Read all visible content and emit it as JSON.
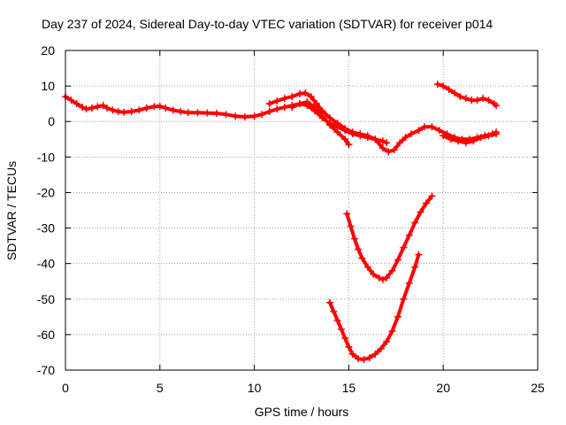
{
  "chart_data": {
    "type": "scatter",
    "title": "Day 237 of 2024, Sidereal Day-to-day VTEC variation (SDTVAR) for receiver p014",
    "xlabel": "GPS time / hours",
    "ylabel": "SDTVAR / TECUs",
    "xlim": [
      0,
      25
    ],
    "ylim": [
      -70,
      20
    ],
    "xticks": [
      0,
      5,
      10,
      15,
      20,
      25
    ],
    "yticks": [
      -70,
      -60,
      -50,
      -40,
      -30,
      -20,
      -10,
      0,
      10,
      20
    ],
    "grid": true,
    "marker": "plus",
    "color": "#ff0000",
    "series": [
      {
        "name": "segment-1",
        "x": [
          0.0,
          0.3,
          0.6,
          0.9,
          1.1,
          1.4,
          1.7,
          2.0,
          2.2,
          2.5,
          2.8,
          3.1,
          3.5,
          3.9,
          4.3,
          4.7,
          5.0,
          5.3,
          5.7,
          6.1,
          6.5,
          7.0,
          7.5,
          8.0,
          8.5,
          9.0,
          9.5,
          10.0,
          10.4,
          10.8,
          11.2,
          11.6,
          12.0,
          12.4,
          12.8,
          13.2,
          13.6,
          14.0,
          14.4,
          14.8,
          15.2,
          15.6,
          16.0,
          16.4,
          16.8,
          17.0
        ],
        "y": [
          7.0,
          6.0,
          5.0,
          4.0,
          3.5,
          3.8,
          4.2,
          4.5,
          3.8,
          3.2,
          2.8,
          2.6,
          2.8,
          3.2,
          3.8,
          4.2,
          4.3,
          3.8,
          3.2,
          2.8,
          2.5,
          2.5,
          2.4,
          2.3,
          2.0,
          1.5,
          1.3,
          1.5,
          2.0,
          2.8,
          3.5,
          4.0,
          4.5,
          5.0,
          4.5,
          3.0,
          1.0,
          -0.5,
          -1.5,
          -2.5,
          -3.5,
          -4.0,
          -4.5,
          -5.0,
          -5.5,
          -6.0
        ]
      },
      {
        "name": "segment-2",
        "x": [
          10.8,
          11.2,
          11.6,
          12.0,
          12.4,
          12.7,
          13.0,
          13.3,
          13.6,
          14.0,
          14.4,
          14.8,
          15.2,
          15.6,
          16.0,
          16.4,
          16.8,
          17.1,
          17.4,
          17.7,
          18.0,
          18.3,
          18.7,
          19.0,
          19.4,
          19.8,
          20.2,
          20.6,
          21.0,
          21.4,
          21.8,
          22.2,
          22.6,
          22.8
        ],
        "y": [
          5.0,
          5.8,
          6.5,
          7.0,
          7.8,
          8.0,
          7.0,
          5.0,
          3.0,
          1.0,
          -0.5,
          -2.0,
          -3.0,
          -3.5,
          -4.0,
          -5.0,
          -7.5,
          -8.5,
          -8.0,
          -6.0,
          -4.5,
          -3.5,
          -2.5,
          -1.5,
          -1.5,
          -2.5,
          -3.5,
          -4.5,
          -5.0,
          -5.0,
          -4.5,
          -4.0,
          -3.5,
          -3.0
        ]
      },
      {
        "name": "segment-3",
        "x": [
          12.0,
          12.4,
          12.8,
          13.2,
          13.6,
          14.0,
          14.4,
          14.8,
          15.0
        ],
        "y": [
          4.0,
          5.0,
          5.5,
          4.0,
          1.5,
          -1.0,
          -3.0,
          -5.0,
          -6.5
        ]
      },
      {
        "name": "segment-4",
        "x": [
          20.0,
          20.4,
          20.8,
          21.2,
          21.6,
          22.0,
          22.4,
          22.8
        ],
        "y": [
          -4.0,
          -5.0,
          -5.5,
          -6.0,
          -5.5,
          -4.5,
          -4.0,
          -3.5
        ]
      },
      {
        "name": "segment-5",
        "x": [
          19.7,
          20.0,
          20.3,
          20.6,
          20.9,
          21.2,
          21.5,
          21.8,
          22.1,
          22.4,
          22.7,
          22.8
        ],
        "y": [
          10.5,
          10.0,
          9.0,
          8.0,
          7.0,
          6.5,
          6.0,
          6.0,
          6.5,
          6.0,
          5.0,
          4.5
        ]
      },
      {
        "name": "segment-6",
        "x": [
          14.9,
          15.1,
          15.3,
          15.5,
          15.7,
          16.0,
          16.3,
          16.6,
          16.8,
          17.0,
          17.3,
          17.6,
          17.9,
          18.2,
          18.5,
          18.8,
          19.1,
          19.4
        ],
        "y": [
          -26.0,
          -29.5,
          -33.0,
          -36.0,
          -38.5,
          -41.0,
          -43.0,
          -44.0,
          -44.5,
          -44.0,
          -42.0,
          -39.0,
          -35.5,
          -32.0,
          -28.5,
          -25.5,
          -23.0,
          -21.0
        ]
      },
      {
        "name": "segment-7",
        "x": [
          14.0,
          14.2,
          14.4,
          14.6,
          14.8,
          15.0,
          15.2,
          15.5,
          15.8,
          16.1,
          16.4,
          16.7,
          17.0,
          17.3,
          17.6,
          17.9,
          18.2,
          18.5,
          18.7
        ],
        "y": [
          -51.0,
          -53.5,
          -56.0,
          -58.5,
          -61.0,
          -63.5,
          -65.5,
          -66.8,
          -67.0,
          -66.5,
          -65.5,
          -64.0,
          -62.0,
          -59.0,
          -55.0,
          -50.0,
          -45.5,
          -41.0,
          -37.5
        ]
      }
    ]
  }
}
